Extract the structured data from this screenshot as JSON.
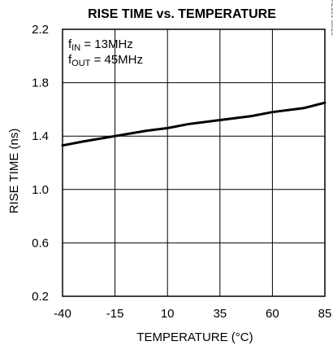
{
  "chart_data": {
    "type": "line",
    "title": "RISE TIME vs. TEMPERATURE",
    "xlabel": "TEMPERATURE (°C)",
    "ylabel": "RISE TIME (ns)",
    "xlim": [
      -40,
      85
    ],
    "ylim": [
      0.2,
      2.2
    ],
    "x_ticks": [
      "-40",
      "-15",
      "10",
      "35",
      "60",
      "85"
    ],
    "y_ticks": [
      "2.2",
      "1.8",
      "1.4",
      "1.0",
      "0.6",
      "0.2"
    ],
    "grid": true,
    "annotations": {
      "line1": {
        "base": "f",
        "sub": "IN",
        "rest": " = 13MHz"
      },
      "line2": {
        "base": "f",
        "sub": "OUT",
        "rest": " = 45MHz"
      }
    },
    "side_id": "MAX2101 toc20",
    "series": [
      {
        "x": [
          -40,
          -30,
          -15,
          0,
          10,
          20,
          35,
          50,
          60,
          75,
          85
        ],
        "y": [
          1.33,
          1.36,
          1.4,
          1.44,
          1.46,
          1.49,
          1.52,
          1.55,
          1.58,
          1.61,
          1.65
        ]
      }
    ]
  }
}
